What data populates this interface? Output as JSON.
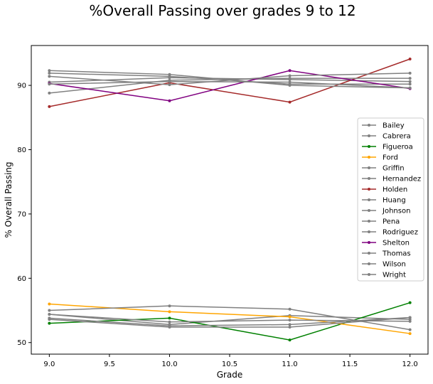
{
  "chart_data": {
    "type": "line",
    "title": "%Overall Passing over grades 9 to 12",
    "xlabel": "Grade",
    "ylabel": "% Overall Passing",
    "x": [
      9.0,
      10.0,
      11.0,
      12.0
    ],
    "xlim": [
      8.85,
      12.15
    ],
    "ylim": [
      48.2,
      96.2
    ],
    "xticks": [
      "9.0",
      "9.5",
      "10.0",
      "10.5",
      "11.0",
      "11.5",
      "12.0"
    ],
    "yticks": [
      "50",
      "60",
      "70",
      "80",
      "90"
    ],
    "grid": false,
    "legend_position": "center-right",
    "series": [
      {
        "name": "Bailey",
        "color": "#808080",
        "values": [
          54.4,
          52.8,
          54.2,
          53.6
        ]
      },
      {
        "name": "Cabrera",
        "color": "#808080",
        "values": [
          91.9,
          91.4,
          90.2,
          90.2
        ]
      },
      {
        "name": "Figueroa",
        "color": "#008000",
        "values": [
          53.0,
          53.8,
          50.4,
          56.2
        ]
      },
      {
        "name": "Ford",
        "color": "#FFA500",
        "values": [
          56.0,
          54.8,
          54.0,
          51.4
        ]
      },
      {
        "name": "Griffin",
        "color": "#808080",
        "values": [
          90.5,
          91.2,
          90.9,
          90.6
        ]
      },
      {
        "name": "Hernandez",
        "color": "#808080",
        "values": [
          54.4,
          53.2,
          53.5,
          53.3
        ]
      },
      {
        "name": "Holden",
        "color": "#A52A2A",
        "values": [
          86.7,
          90.4,
          87.4,
          94.1
        ]
      },
      {
        "name": "Huang",
        "color": "#808080",
        "values": [
          55.0,
          55.7,
          55.2,
          52.0
        ]
      },
      {
        "name": "Johnson",
        "color": "#808080",
        "values": [
          53.6,
          52.4,
          52.4,
          53.9
        ]
      },
      {
        "name": "Pena",
        "color": "#808080",
        "values": [
          88.8,
          90.8,
          91.1,
          91.1
        ]
      },
      {
        "name": "Rodriguez",
        "color": "#808080",
        "values": [
          53.8,
          52.6,
          52.8,
          53.9
        ]
      },
      {
        "name": "Shelton",
        "color": "#800080",
        "values": [
          90.3,
          87.6,
          92.3,
          89.5
        ]
      },
      {
        "name": "Thomas",
        "color": "#808080",
        "values": [
          91.4,
          90.1,
          91.5,
          91.9
        ]
      },
      {
        "name": "Wilson",
        "color": "#808080",
        "values": [
          92.3,
          91.7,
          90.0,
          89.6
        ]
      },
      {
        "name": "Wright",
        "color": "#808080",
        "values": [
          90.2,
          90.6,
          90.5,
          89.6
        ]
      }
    ]
  }
}
